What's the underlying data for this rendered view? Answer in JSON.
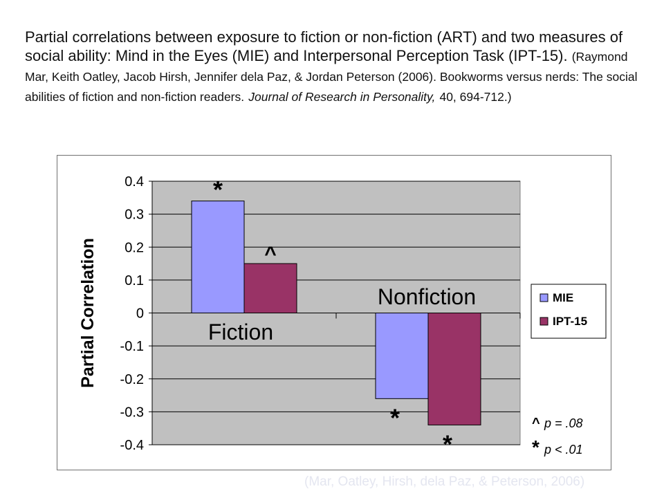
{
  "caption": {
    "main": "Partial correlations between exposure to fiction or non-fiction (ART) and two measures of social ability: Mind in the Eyes (MIE) and Interpersonal Perception Task (IPT-15).",
    "ref_authors": "(Raymond Mar, Keith Oatley, Jacob Hirsh, Jennifer dela Paz, & Jordan Peterson (2006). Bookworms versus nerds: The social abilities of fiction and non-fiction readers.",
    "ref_journal": "Journal of Research in Personality,",
    "ref_tail": "40, 694-712.)"
  },
  "chart_data": {
    "type": "bar",
    "ylabel": "Partial Correlation",
    "ylim": [
      -0.4,
      0.4
    ],
    "yticks": [
      "0.4",
      "0.3",
      "0.2",
      "0.1",
      "0",
      "-0.1",
      "-0.2",
      "-0.3",
      "-0.4"
    ],
    "yticks_values": [
      0.4,
      0.3,
      0.2,
      0.1,
      0,
      -0.1,
      -0.2,
      -0.3,
      -0.4
    ],
    "grid": true,
    "categories": [
      "Fiction",
      "Nonfiction"
    ],
    "series": [
      {
        "name": "MIE",
        "color": "#9999ff",
        "values": [
          0.34,
          -0.26
        ],
        "markers": [
          "*",
          "*"
        ]
      },
      {
        "name": "IPT-15",
        "color": "#993366",
        "values": [
          0.15,
          -0.34
        ],
        "markers": [
          "^",
          "*"
        ]
      }
    ],
    "legend_position": "right",
    "plot_background": "#c0c0c0",
    "notes": [
      {
        "symbol": "^",
        "text": "p = .08"
      },
      {
        "symbol": "*",
        "text": "p < .01"
      }
    ]
  },
  "watermark": "(Mar, Oatley, Hirsh, dela Paz, & Peterson, 2006)"
}
